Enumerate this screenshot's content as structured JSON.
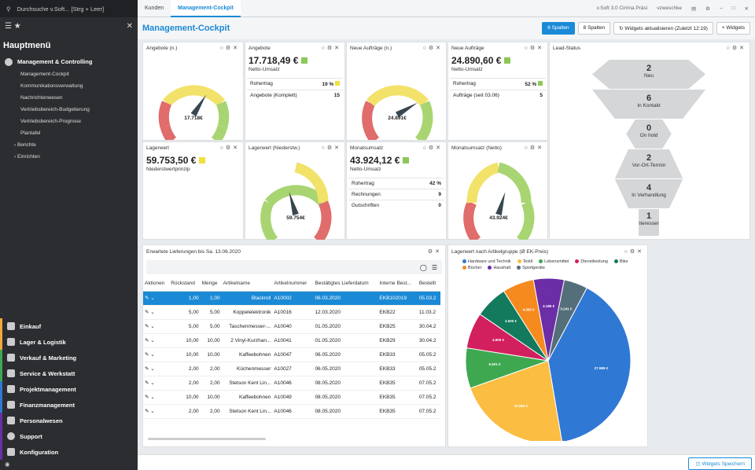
{
  "sidebar": {
    "search_text": "Durchsuche v.Soft... [Strg + Leer]",
    "title": "Hauptmenü",
    "group_main": "Management & Controlling",
    "items": [
      "Management-Cockpit",
      "Kommunikationsverwaltung",
      "Nachrichtenwesen",
      "Vertriebsbereich-Budgetierung",
      "Vertriebsbereich-Prognose",
      "Plantafel"
    ],
    "sub_groups": [
      "Berichte",
      "Einrichten"
    ],
    "bottom": [
      "Einkauf",
      "Lager & Logistik",
      "Verkauf & Marketing",
      "Service & Werkstatt",
      "Projektmanagement",
      "Finanzmanagement",
      "Personalwesen",
      "Support",
      "Konfiguration"
    ]
  },
  "topbar": {
    "tabs": [
      "Kunden",
      "Management-Cockpit"
    ],
    "app_title": "v.Soft 3.0 Cirrina Präsi",
    "user": "vzweschke"
  },
  "header": {
    "title": "Management-Cockpit",
    "btn_6": "6 Spalten",
    "btn_8": "8 Spalten",
    "btn_refresh": "Widgets aktualisieren (Zuletzt 12:19)",
    "btn_add": "Widgets"
  },
  "widgets": {
    "angebote_n": {
      "title": "Angebote (n.)",
      "value": "17.718€",
      "fraction": 0.62
    },
    "angebote": {
      "title": "Angebote",
      "value": "17.718,49 €",
      "sub": "Netto-Umsatz",
      "r1l": "Rohertrag",
      "r1v": "19 %",
      "r2l": "Angebote (Komplett)",
      "r2v": "15",
      "color": "#8cc858"
    },
    "auftraege_n": {
      "title": "Neue Aufträge (n.)",
      "value": "24.891€",
      "fraction": 0.72
    },
    "auftraege": {
      "title": "Neue Aufträge",
      "value": "24.890,60 €",
      "sub": "Netto-Umsatz",
      "r1l": "Rohertrag",
      "r1v": "52 %",
      "r2l": "Aufträge (seit 03.06)",
      "r2v": "5",
      "color": "#8cc858"
    },
    "lagerwert": {
      "title": "Lagerwert",
      "value": "59.753,50 €",
      "sub": "Niederstwertprinzip",
      "color": "#f2e03c"
    },
    "lagerwert_n": {
      "title": "Lagerwert (Niederstw.)",
      "value": "59.754€",
      "fraction": 0.44
    },
    "monat": {
      "title": "Monatsumsatz",
      "value": "43.924,12 €",
      "sub": "Netto-Umsatz",
      "r1l": "Rohertrag",
      "r1v": "42 %",
      "r2l": "Rechnungen",
      "r2v": "9",
      "r3l": "Gutschriften",
      "r3v": "0",
      "color": "#8cc858"
    },
    "monat_n": {
      "title": "Monatsumsatz (Netto)",
      "value": "43.924€",
      "fraction": 0.56
    },
    "lead": {
      "title": "Lead-Status",
      "stages": [
        {
          "n": "2",
          "l": "Neu"
        },
        {
          "n": "6",
          "l": "In Kontakt"
        },
        {
          "n": "0",
          "l": "On hold"
        },
        {
          "n": "2",
          "l": "Vor-Ort-Termin"
        },
        {
          "n": "4",
          "l": "In Verhandlung"
        },
        {
          "n": "1",
          "l": "Interessent"
        }
      ]
    },
    "lieferungen": {
      "title": "Erwartete Lieferungen bis Sa. 13.06.2020",
      "headers": [
        "Aktionen",
        "Rückstand",
        "Menge",
        "Artikelname",
        "Artikelnummer",
        "Bestätigtes Lieferdatum",
        "Interne Best...",
        "Bestellt"
      ],
      "rows": [
        [
          "1,00",
          "1,00",
          "Blackroll",
          "A10002",
          "06.03.2020",
          "EKB102019",
          "05.03.2"
        ],
        [
          "5,00",
          "5,00",
          "Koppelelektronik",
          "A10016",
          "12.03.2020",
          "EKB22",
          "11.03.2"
        ],
        [
          "5,00",
          "5,00",
          "Taschenmesser-...",
          "A10040",
          "01.05.2020",
          "EKB25",
          "30.04.2"
        ],
        [
          "10,00",
          "10,00",
          "2 Vinyl-Kurzhan...",
          "A10041",
          "01.05.2020",
          "EKB29",
          "30.04.2"
        ],
        [
          "10,00",
          "10,00",
          "Kaffeebohnen",
          "A10047",
          "06.05.2020",
          "EKB33",
          "05.05.2"
        ],
        [
          "2,00",
          "2,00",
          "Küchenmesser",
          "A10027",
          "06.05.2020",
          "EKB33",
          "05.05.2"
        ],
        [
          "2,00",
          "2,00",
          "Stetson Kent Lin...",
          "A10046",
          "08.05.2020",
          "EKB35",
          "07.05.2"
        ],
        [
          "10,00",
          "10,00",
          "Kaffeebohnen",
          "A10049",
          "08.05.2020",
          "EKB35",
          "07.05.2"
        ],
        [
          "2,00",
          "2,00",
          "Stetson Kent Lin...",
          "A10046",
          "08.05.2020",
          "EKB35",
          "07.05.2"
        ]
      ]
    },
    "pie": {
      "title": "Lagerwert nach Artikelgruppe (Ø EK-Preis)"
    }
  },
  "chart_data": {
    "type": "pie",
    "title": "Lagerwert nach Artikelgruppe (Ø EK-Preis)",
    "legend": [
      "Hardware und Technik",
      "Textil",
      "Lebensmittel",
      "Dienstleistung",
      "Bike",
      "Bücher",
      "Haushalt",
      "Sportgeräte"
    ],
    "series": [
      {
        "name": "Hardware und Technik",
        "value": 27589,
        "label": "27.589 €",
        "color": "#2f78d4"
      },
      {
        "name": "Textil",
        "value": 15564,
        "label": "15.564 €",
        "color": "#fbbd42"
      },
      {
        "name": "Lebensmittel",
        "value": 5501,
        "label": "5.501 €",
        "color": "#3ea850"
      },
      {
        "name": "Dienstleistung",
        "value": 4900,
        "label": "4.900 €",
        "color": "#d21f5e"
      },
      {
        "name": "Bike",
        "value": 4500,
        "label": "4.500 €",
        "color": "#137a5e"
      },
      {
        "name": "Bücher",
        "value": 4300,
        "label": "4.300 €",
        "color": "#f58a1f"
      },
      {
        "name": "Haushalt",
        "value": 4185,
        "label": "4.185 €",
        "color": "#6b2ea6"
      },
      {
        "name": "Sportgeräte",
        "value": 3241,
        "label": "3.241 €",
        "color": "#546e7a"
      }
    ]
  },
  "footer": {
    "save": "Widgets Speichern"
  }
}
